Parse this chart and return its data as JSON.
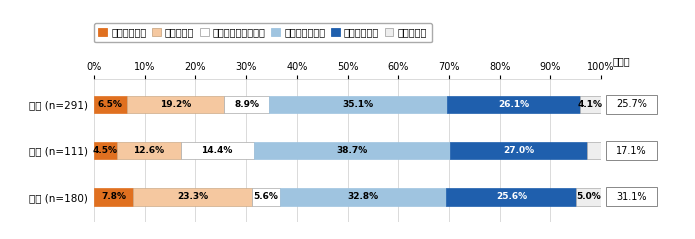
{
  "categories": [
    "全体 (n=291)",
    "男性 (n=111)",
    "女性 (n=180)"
  ],
  "series": [
    {
      "label": "非常に感じる",
      "color": "#E07020",
      "edgecolor": "#E07020",
      "values": [
        6.5,
        4.5,
        7.8
      ]
    },
    {
      "label": "多少感じる",
      "color": "#F5C8A0",
      "edgecolor": "#CCAA88",
      "values": [
        19.2,
        12.6,
        23.3
      ]
    },
    {
      "label": "どちらとも言えない",
      "color": "#FFFFFF",
      "edgecolor": "#AAAAAA",
      "values": [
        8.9,
        14.4,
        5.6
      ]
    },
    {
      "label": "あまり感じない",
      "color": "#9FC4E0",
      "edgecolor": "#9FC4E0",
      "values": [
        35.1,
        38.7,
        32.8
      ]
    },
    {
      "label": "全く感じない",
      "color": "#1F5FAD",
      "edgecolor": "#1F5FAD",
      "values": [
        26.1,
        27.0,
        25.6
      ]
    },
    {
      "label": "わからない",
      "color": "#EEEEEE",
      "edgecolor": "#AAAAAA",
      "values": [
        4.1,
        2.7,
        5.0
      ]
    }
  ],
  "affirmative": [
    "25.7%",
    "17.1%",
    "31.1%"
  ],
  "affirmative_label": "肯定計",
  "xlim": [
    0,
    100
  ],
  "xticks": [
    0,
    10,
    20,
    30,
    40,
    50,
    60,
    70,
    80,
    90,
    100
  ],
  "bar_height": 0.38,
  "figsize": [
    6.95,
    2.39
  ],
  "dpi": 100
}
